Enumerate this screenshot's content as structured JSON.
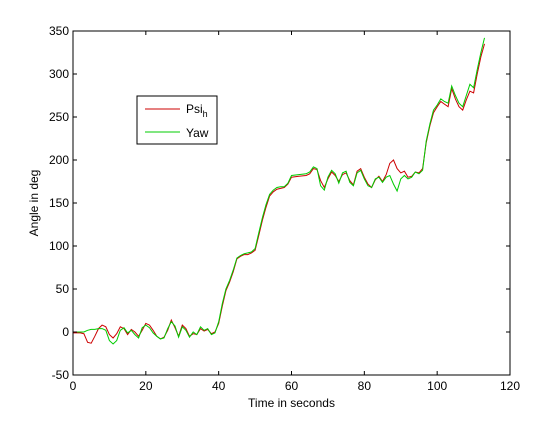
{
  "chart_data": {
    "type": "line",
    "xlabel": "Time in seconds",
    "ylabel": "Angle in deg",
    "xlim": [
      0,
      120
    ],
    "ylim": [
      -50,
      350
    ],
    "xticks": [
      0,
      20,
      40,
      60,
      80,
      100,
      120
    ],
    "yticks": [
      -50,
      0,
      50,
      100,
      150,
      200,
      250,
      300,
      350
    ],
    "grid": false,
    "legend_position": "upper-left",
    "series": [
      {
        "name": "Psi",
        "name_sub": "h",
        "color": "#cc0000",
        "points": [
          [
            0,
            -1
          ],
          [
            2,
            -1
          ],
          [
            3,
            -2
          ],
          [
            4,
            -12
          ],
          [
            5,
            -13
          ],
          [
            6,
            -5
          ],
          [
            7,
            4
          ],
          [
            8,
            8
          ],
          [
            9,
            6
          ],
          [
            10,
            -3
          ],
          [
            11,
            -7
          ],
          [
            12,
            -2
          ],
          [
            13,
            6
          ],
          [
            14,
            4
          ],
          [
            15,
            -3
          ],
          [
            16,
            3
          ],
          [
            17,
            0
          ],
          [
            18,
            -5
          ],
          [
            19,
            2
          ],
          [
            20,
            10
          ],
          [
            21,
            8
          ],
          [
            22,
            2
          ],
          [
            23,
            -5
          ],
          [
            24,
            -8
          ],
          [
            25,
            -6
          ],
          [
            26,
            2
          ],
          [
            27,
            14
          ],
          [
            28,
            5
          ],
          [
            29,
            -5
          ],
          [
            30,
            8
          ],
          [
            31,
            4
          ],
          [
            32,
            -5
          ],
          [
            33,
            -2
          ],
          [
            34,
            -3
          ],
          [
            35,
            4
          ],
          [
            36,
            1
          ],
          [
            37,
            3
          ],
          [
            38,
            -2
          ],
          [
            39,
            0
          ],
          [
            40,
            10
          ],
          [
            41,
            30
          ],
          [
            42,
            48
          ],
          [
            43,
            58
          ],
          [
            44,
            70
          ],
          [
            45,
            85
          ],
          [
            46,
            88
          ],
          [
            47,
            90
          ],
          [
            48,
            90
          ],
          [
            49,
            92
          ],
          [
            50,
            95
          ],
          [
            51,
            112
          ],
          [
            52,
            130
          ],
          [
            53,
            145
          ],
          [
            54,
            158
          ],
          [
            55,
            163
          ],
          [
            56,
            166
          ],
          [
            57,
            167
          ],
          [
            58,
            168
          ],
          [
            59,
            172
          ],
          [
            60,
            180
          ],
          [
            62,
            181
          ],
          [
            64,
            182
          ],
          [
            65,
            184
          ],
          [
            66,
            190
          ],
          [
            67,
            189
          ],
          [
            68,
            176
          ],
          [
            69,
            168
          ],
          [
            70,
            178
          ],
          [
            71,
            186
          ],
          [
            72,
            182
          ],
          [
            73,
            175
          ],
          [
            74,
            183
          ],
          [
            75,
            185
          ],
          [
            76,
            176
          ],
          [
            77,
            171
          ],
          [
            78,
            187
          ],
          [
            79,
            190
          ],
          [
            80,
            180
          ],
          [
            81,
            172
          ],
          [
            82,
            168
          ],
          [
            83,
            177
          ],
          [
            84,
            181
          ],
          [
            85,
            175
          ],
          [
            86,
            183
          ],
          [
            87,
            196
          ],
          [
            88,
            200
          ],
          [
            89,
            190
          ],
          [
            90,
            185
          ],
          [
            91,
            187
          ],
          [
            92,
            180
          ],
          [
            93,
            181
          ],
          [
            94,
            186
          ],
          [
            95,
            185
          ],
          [
            96,
            190
          ],
          [
            97,
            220
          ],
          [
            98,
            240
          ],
          [
            99,
            255
          ],
          [
            100,
            262
          ],
          [
            101,
            268
          ],
          [
            102,
            265
          ],
          [
            103,
            262
          ],
          [
            104,
            283
          ],
          [
            105,
            271
          ],
          [
            106,
            262
          ],
          [
            107,
            258
          ],
          [
            108,
            270
          ],
          [
            109,
            280
          ],
          [
            110,
            278
          ],
          [
            111,
            300
          ],
          [
            112,
            320
          ],
          [
            113,
            335
          ]
        ]
      },
      {
        "name": "Yaw",
        "color": "#00cc00",
        "points": [
          [
            0,
            0
          ],
          [
            2,
            0
          ],
          [
            3,
            0
          ],
          [
            4,
            2
          ],
          [
            5,
            3
          ],
          [
            6,
            3
          ],
          [
            7,
            4
          ],
          [
            8,
            4
          ],
          [
            9,
            2
          ],
          [
            10,
            -10
          ],
          [
            11,
            -14
          ],
          [
            12,
            -10
          ],
          [
            13,
            2
          ],
          [
            14,
            5
          ],
          [
            15,
            -1
          ],
          [
            16,
            2
          ],
          [
            17,
            -3
          ],
          [
            18,
            -7
          ],
          [
            19,
            5
          ],
          [
            20,
            8
          ],
          [
            21,
            5
          ],
          [
            22,
            -1
          ],
          [
            23,
            -5
          ],
          [
            24,
            -8
          ],
          [
            25,
            -7
          ],
          [
            26,
            4
          ],
          [
            27,
            12
          ],
          [
            28,
            7
          ],
          [
            29,
            -6
          ],
          [
            30,
            6
          ],
          [
            31,
            2
          ],
          [
            32,
            -6
          ],
          [
            33,
            0
          ],
          [
            34,
            -3
          ],
          [
            35,
            6
          ],
          [
            36,
            2
          ],
          [
            37,
            4
          ],
          [
            38,
            -3
          ],
          [
            39,
            -1
          ],
          [
            40,
            12
          ],
          [
            41,
            33
          ],
          [
            42,
            50
          ],
          [
            43,
            60
          ],
          [
            44,
            72
          ],
          [
            45,
            86
          ],
          [
            46,
            89
          ],
          [
            47,
            91
          ],
          [
            48,
            92
          ],
          [
            49,
            93
          ],
          [
            50,
            97
          ],
          [
            51,
            115
          ],
          [
            52,
            133
          ],
          [
            53,
            148
          ],
          [
            54,
            160
          ],
          [
            55,
            165
          ],
          [
            56,
            168
          ],
          [
            57,
            169
          ],
          [
            58,
            169
          ],
          [
            59,
            173
          ],
          [
            60,
            182
          ],
          [
            62,
            183
          ],
          [
            64,
            184
          ],
          [
            65,
            186
          ],
          [
            66,
            192
          ],
          [
            67,
            190
          ],
          [
            68,
            170
          ],
          [
            69,
            165
          ],
          [
            70,
            180
          ],
          [
            71,
            188
          ],
          [
            72,
            184
          ],
          [
            73,
            173
          ],
          [
            74,
            185
          ],
          [
            75,
            187
          ],
          [
            76,
            174
          ],
          [
            77,
            170
          ],
          [
            78,
            185
          ],
          [
            79,
            188
          ],
          [
            80,
            178
          ],
          [
            81,
            170
          ],
          [
            82,
            168
          ],
          [
            83,
            178
          ],
          [
            84,
            180
          ],
          [
            85,
            174
          ],
          [
            86,
            180
          ],
          [
            87,
            182
          ],
          [
            88,
            172
          ],
          [
            89,
            164
          ],
          [
            90,
            178
          ],
          [
            91,
            182
          ],
          [
            92,
            178
          ],
          [
            93,
            180
          ],
          [
            94,
            186
          ],
          [
            95,
            184
          ],
          [
            96,
            188
          ],
          [
            97,
            222
          ],
          [
            98,
            242
          ],
          [
            99,
            258
          ],
          [
            100,
            264
          ],
          [
            101,
            271
          ],
          [
            102,
            268
          ],
          [
            103,
            266
          ],
          [
            104,
            286
          ],
          [
            105,
            275
          ],
          [
            106,
            266
          ],
          [
            107,
            262
          ],
          [
            108,
            275
          ],
          [
            109,
            288
          ],
          [
            110,
            284
          ],
          [
            111,
            305
          ],
          [
            112,
            325
          ],
          [
            113,
            342
          ]
        ]
      }
    ]
  }
}
